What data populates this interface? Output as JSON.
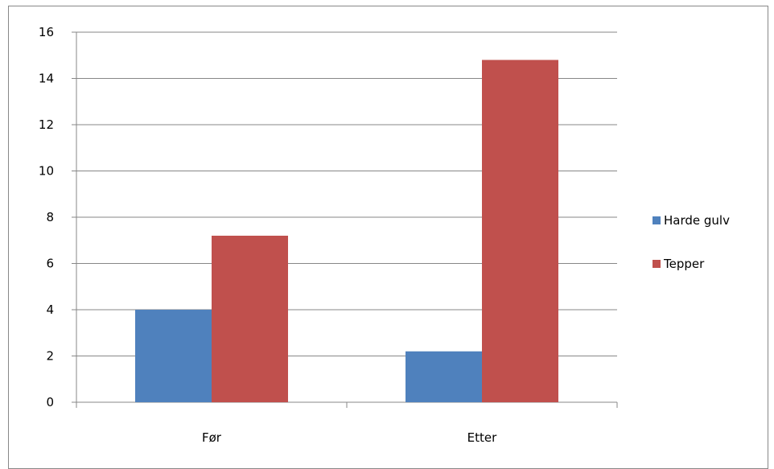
{
  "chart_data": {
    "type": "bar",
    "title": "",
    "xlabel": "",
    "ylabel": "",
    "categories": [
      "Før",
      "Etter"
    ],
    "series": [
      {
        "name": "Harde gulv",
        "values": [
          4,
          2.2
        ],
        "color": "#4f81bd"
      },
      {
        "name": "Tepper",
        "values": [
          7.2,
          14.8
        ],
        "color": "#c0504d"
      }
    ],
    "ylim": [
      0,
      16
    ],
    "yticks": [
      "0",
      "2",
      "4",
      "6",
      "8",
      "10",
      "12",
      "14",
      "16"
    ],
    "grid": true,
    "legend_position": "right"
  }
}
